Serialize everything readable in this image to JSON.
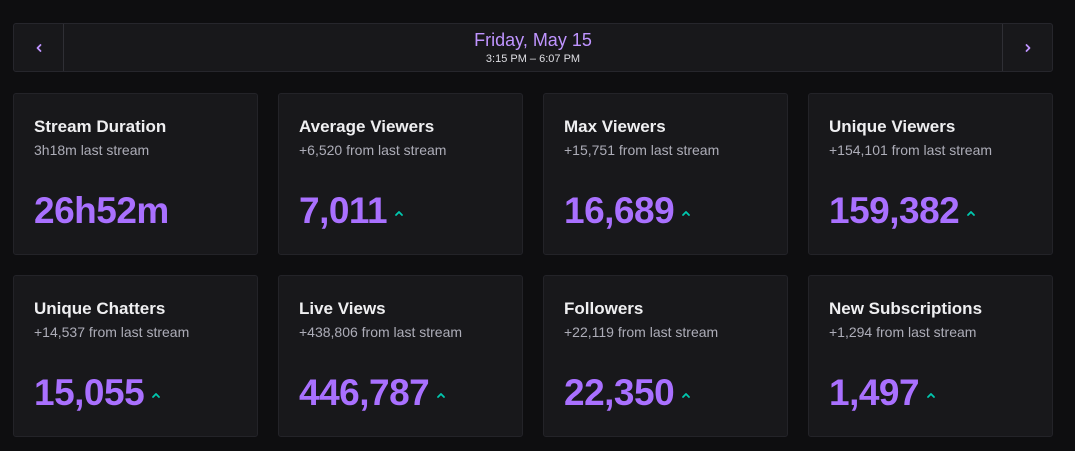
{
  "date_nav": {
    "title": "Friday, May 15",
    "range": "3:15 PM – 6:07 PM",
    "prev_icon": "chevron-left-icon",
    "next_icon": "chevron-right-icon"
  },
  "colors": {
    "accent": "#bf94ff",
    "value": "#a970ff",
    "trend_up": "#00c8af",
    "background": "#0e0e10",
    "card": "#18181b"
  },
  "cards": [
    {
      "title": "Stream Duration",
      "sub": "3h18m last stream",
      "value": "26h52m",
      "trend": "none"
    },
    {
      "title": "Average Viewers",
      "sub": "+6,520 from last stream",
      "value": "7,011",
      "trend": "up"
    },
    {
      "title": "Max Viewers",
      "sub": "+15,751 from last stream",
      "value": "16,689",
      "trend": "up"
    },
    {
      "title": "Unique Viewers",
      "sub": "+154,101 from last stream",
      "value": "159,382",
      "trend": "up"
    },
    {
      "title": "Unique Chatters",
      "sub": "+14,537 from last stream",
      "value": "15,055",
      "trend": "up"
    },
    {
      "title": "Live Views",
      "sub": "+438,806 from last stream",
      "value": "446,787",
      "trend": "up"
    },
    {
      "title": "Followers",
      "sub": "+22,119 from last stream",
      "value": "22,350",
      "trend": "up"
    },
    {
      "title": "New Subscriptions",
      "sub": "+1,294 from last stream",
      "value": "1,497",
      "trend": "up"
    }
  ]
}
